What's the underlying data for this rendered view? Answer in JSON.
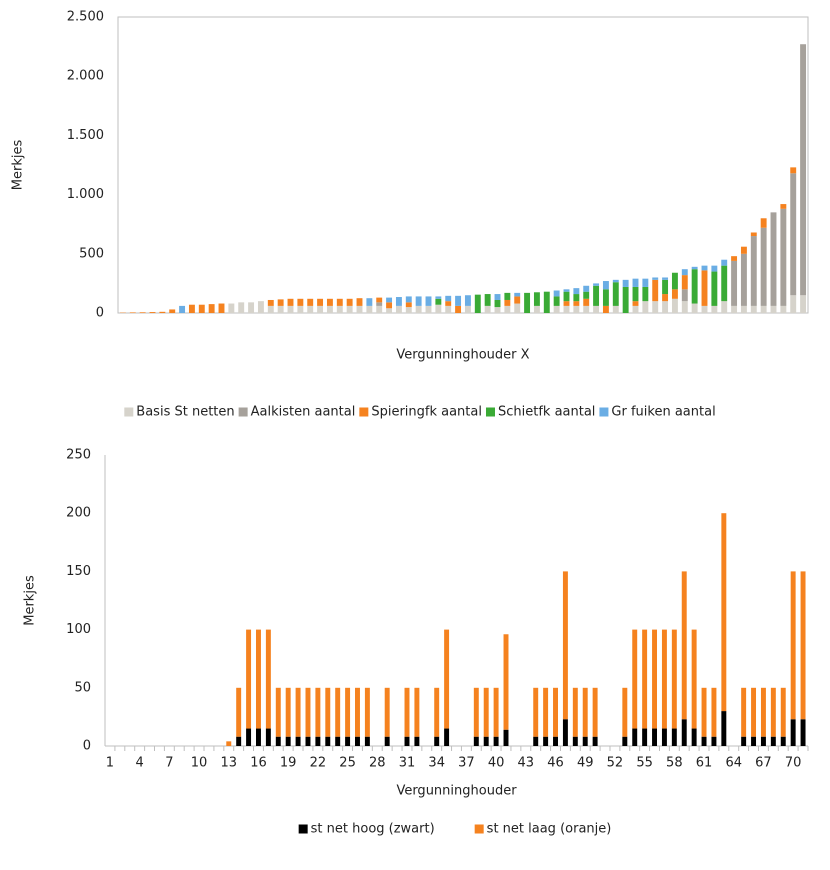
{
  "chart_data": [
    {
      "type": "stacked_bar",
      "x_label": "Vergunninghouder X",
      "y_label": "Merkjes",
      "categories": [
        null,
        null,
        null,
        null,
        null,
        null,
        null,
        null,
        null,
        null,
        null,
        null,
        null,
        null,
        null,
        null,
        null,
        null,
        null,
        null,
        null,
        null,
        null,
        null,
        null,
        null,
        null,
        null,
        null,
        null,
        null,
        null,
        null,
        null,
        null,
        null,
        null,
        null,
        null,
        null,
        null,
        null,
        null,
        null,
        null,
        null,
        null,
        null,
        null,
        null,
        null,
        null,
        null,
        null,
        null,
        null,
        null,
        null,
        null,
        null,
        null,
        null,
        null,
        null,
        null,
        null,
        null,
        null,
        null,
        null
      ],
      "ylim": [
        0,
        2500
      ],
      "yticks": [
        0,
        500,
        {
          "value": 1000,
          "label": "1.000"
        },
        {
          "value": 1500,
          "label": "1.500"
        },
        {
          "value": 2000,
          "label": "2.000"
        },
        {
          "value": 2500,
          "label": "2.500"
        }
      ],
      "grid": false,
      "frame": true,
      "legend": "bottom",
      "series": [
        {
          "name": "Basis St netten",
          "color": "#d6d3cb",
          "values": [
            0,
            0,
            0,
            0,
            0,
            0,
            0,
            0,
            0,
            0,
            0,
            80,
            90,
            90,
            100,
            60,
            60,
            60,
            60,
            60,
            60,
            60,
            60,
            60,
            60,
            60,
            60,
            40,
            60,
            50,
            60,
            60,
            70,
            60,
            0,
            60,
            0,
            60,
            50,
            60,
            80,
            0,
            60,
            0,
            60,
            60,
            60,
            60,
            60,
            0,
            60,
            0,
            60,
            100,
            100,
            100,
            120,
            100,
            80,
            60,
            60,
            100,
            60,
            60,
            60,
            60,
            60,
            60,
            150,
            150
          ]
        },
        {
          "name": "Aalkisten aantal",
          "color": "#a6a19b",
          "values": [
            0,
            0,
            0,
            0,
            0,
            0,
            0,
            0,
            0,
            0,
            0,
            0,
            0,
            0,
            0,
            0,
            0,
            0,
            0,
            0,
            0,
            0,
            0,
            0,
            0,
            0,
            30,
            0,
            0,
            0,
            0,
            0,
            0,
            0,
            0,
            0,
            0,
            0,
            0,
            0,
            0,
            0,
            0,
            0,
            0,
            0,
            0,
            0,
            0,
            0,
            0,
            0,
            0,
            0,
            0,
            0,
            0,
            100,
            0,
            0,
            0,
            0,
            380,
            440,
            590,
            660,
            790,
            820,
            1030,
            2120
          ]
        },
        {
          "name": "Spieringfk aantal",
          "color": "#f5821f",
          "values": [
            3,
            5,
            6,
            8,
            10,
            30,
            0,
            70,
            70,
            75,
            80,
            0,
            0,
            0,
            0,
            50,
            55,
            60,
            60,
            60,
            60,
            60,
            60,
            60,
            65,
            0,
            40,
            50,
            0,
            40,
            0,
            0,
            0,
            40,
            60,
            0,
            0,
            0,
            0,
            50,
            60,
            0,
            0,
            0,
            0,
            40,
            40,
            60,
            0,
            60,
            0,
            0,
            40,
            0,
            180,
            60,
            80,
            120,
            0,
            300,
            0,
            0,
            40,
            60,
            30,
            80,
            0,
            40,
            50,
            0
          ]
        },
        {
          "name": "Schietfk aantal",
          "color": "#3aaa35",
          "values": [
            0,
            0,
            0,
            0,
            0,
            0,
            0,
            0,
            0,
            0,
            0,
            0,
            0,
            0,
            0,
            0,
            0,
            0,
            0,
            0,
            0,
            0,
            0,
            0,
            0,
            0,
            0,
            0,
            0,
            0,
            0,
            0,
            50,
            0,
            0,
            0,
            155,
            100,
            60,
            60,
            0,
            170,
            115,
            180,
            80,
            80,
            60,
            60,
            170,
            140,
            200,
            220,
            120,
            120,
            0,
            120,
            140,
            0,
            290,
            0,
            290,
            300,
            0,
            0,
            0,
            0,
            0,
            0,
            0,
            0
          ]
        },
        {
          "name": "Gr fuiken aantal",
          "color": "#6aade4",
          "values": [
            0,
            0,
            0,
            0,
            0,
            0,
            60,
            0,
            0,
            0,
            0,
            0,
            0,
            0,
            0,
            0,
            0,
            0,
            0,
            0,
            0,
            0,
            0,
            0,
            0,
            65,
            0,
            40,
            75,
            50,
            80,
            80,
            20,
            45,
            85,
            90,
            0,
            0,
            50,
            0,
            30,
            0,
            0,
            0,
            50,
            20,
            50,
            50,
            20,
            70,
            20,
            60,
            70,
            70,
            20,
            20,
            0,
            50,
            20,
            40,
            50,
            50,
            0,
            0,
            0,
            0,
            0,
            0,
            0,
            0
          ]
        }
      ]
    },
    {
      "type": "stacked_bar",
      "x_label": "Vergunninghouder",
      "y_label": "Merkjes",
      "categories": [
        "1",
        null,
        null,
        "4",
        null,
        null,
        "7",
        null,
        null,
        "10",
        null,
        null,
        "13",
        null,
        null,
        "16",
        null,
        null,
        "19",
        null,
        null,
        "22",
        null,
        null,
        "25",
        null,
        null,
        "28",
        null,
        null,
        "31",
        null,
        null,
        "34",
        null,
        null,
        "37",
        null,
        null,
        "40",
        null,
        null,
        "43",
        null,
        null,
        "46",
        null,
        null,
        "49",
        null,
        null,
        "52",
        null,
        null,
        "55",
        null,
        null,
        "58",
        null,
        null,
        "61",
        null,
        null,
        "64",
        null,
        null,
        "67",
        null,
        null,
        "70",
        null
      ],
      "ylim": [
        0,
        250
      ],
      "yticks": [
        0,
        50,
        100,
        150,
        200,
        250
      ],
      "grid": false,
      "frame": false,
      "legend": "bottom",
      "series": [
        {
          "name": "st net hoog (zwart)",
          "color": "#000000",
          "values": [
            0,
            0,
            0,
            0,
            0,
            0,
            0,
            0,
            0,
            0,
            0,
            0,
            0,
            8,
            15,
            15,
            15,
            8,
            8,
            8,
            8,
            8,
            8,
            8,
            8,
            8,
            8,
            0,
            8,
            0,
            8,
            8,
            0,
            8,
            15,
            0,
            0,
            8,
            8,
            8,
            14,
            0,
            0,
            8,
            8,
            8,
            23,
            8,
            8,
            8,
            0,
            0,
            8,
            15,
            15,
            15,
            15,
            15,
            23,
            15,
            8,
            8,
            30,
            0,
            8,
            8,
            8,
            8,
            8,
            23,
            23
          ]
        },
        {
          "name": "st net laag (oranje)",
          "color": "#f5821f",
          "values": [
            0,
            0,
            0,
            0,
            0,
            0,
            0,
            0,
            0,
            0,
            0,
            0,
            4,
            42,
            85,
            85,
            85,
            42,
            42,
            42,
            42,
            42,
            42,
            42,
            42,
            42,
            42,
            0,
            42,
            0,
            42,
            42,
            0,
            42,
            85,
            0,
            0,
            42,
            42,
            42,
            82,
            0,
            0,
            42,
            42,
            42,
            127,
            42,
            42,
            42,
            0,
            0,
            42,
            85,
            85,
            85,
            85,
            85,
            127,
            85,
            42,
            42,
            170,
            0,
            42,
            42,
            42,
            42,
            42,
            127,
            127
          ]
        }
      ]
    }
  ]
}
